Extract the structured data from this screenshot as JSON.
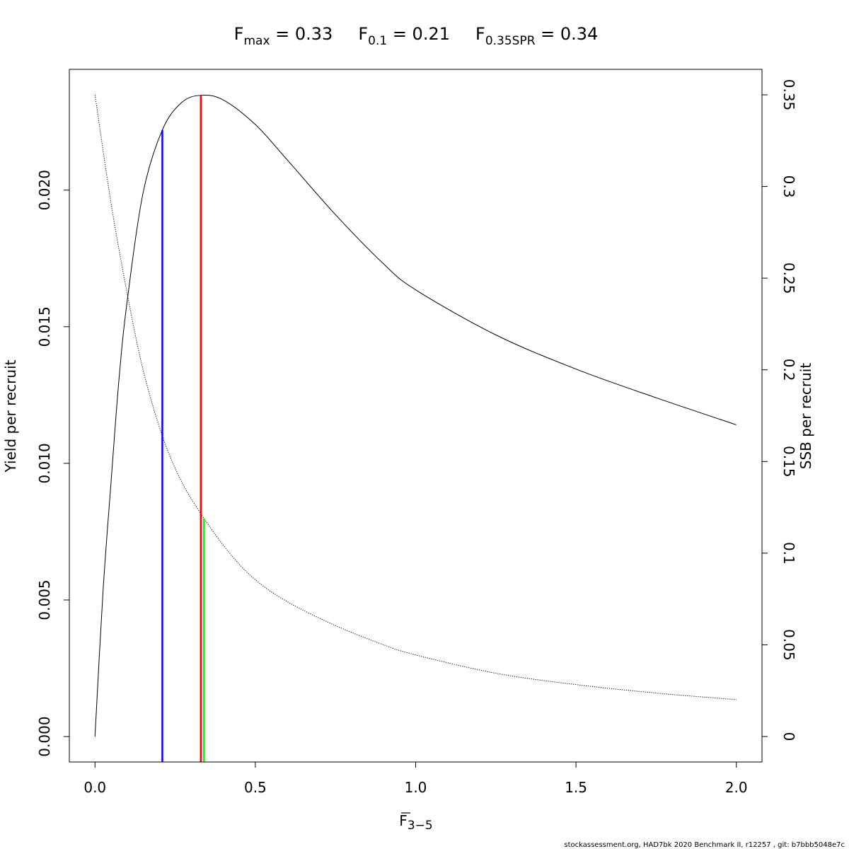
{
  "chart_data": {
    "type": "line",
    "title_parts": [
      {
        "main": "F",
        "sub": "max",
        "rest": " = 0.33"
      },
      {
        "main": "F",
        "sub": "0.1",
        "rest": " = 0.21"
      },
      {
        "main": "F",
        "sub": "0.35SPR",
        "rest": " = 0.34"
      }
    ],
    "xlabel": {
      "main": "F",
      "sub": "3−5",
      "overline": true
    },
    "ylabel_left": "Yield per recruit",
    "ylabel_right": "SSB per recruit",
    "xlim": [
      -0.08,
      2.08
    ],
    "ylim_left": [
      -0.00093,
      0.02442
    ],
    "ylim_right": [
      -0.0139,
      0.3639
    ],
    "x_ticks": [
      {
        "v": 0,
        "label": "0.0"
      },
      {
        "v": 0.5,
        "label": "0.5"
      },
      {
        "v": 1,
        "label": "1.0"
      },
      {
        "v": 1.5,
        "label": "1.5"
      },
      {
        "v": 2,
        "label": "2.0"
      }
    ],
    "y_left_ticks": [
      {
        "v": 0,
        "label": "0.000"
      },
      {
        "v": 0.005,
        "label": "0.005"
      },
      {
        "v": 0.01,
        "label": "0.010"
      },
      {
        "v": 0.015,
        "label": "0.015"
      },
      {
        "v": 0.02,
        "label": "0.020"
      }
    ],
    "y_right_ticks": [
      {
        "v": 0,
        "label": "0"
      },
      {
        "v": 0.05,
        "label": "0.05"
      },
      {
        "v": 0.1,
        "label": "0.1"
      },
      {
        "v": 0.15,
        "label": "0.15"
      },
      {
        "v": 0.2,
        "label": "0.2"
      },
      {
        "v": 0.25,
        "label": "0.25"
      },
      {
        "v": 0.3,
        "label": "0.3"
      },
      {
        "v": 0.35,
        "label": "0.35"
      }
    ],
    "series": [
      {
        "axis": "left",
        "style": "solid",
        "color": "#000000",
        "x": [
          0,
          0.025,
          0.05,
          0.075,
          0.1,
          0.15,
          0.21,
          0.27,
          0.33,
          0.4,
          0.5,
          0.6,
          0.75,
          0.9,
          1.0,
          1.25,
          1.5,
          1.75,
          2.0
        ],
        "y": [
          0,
          0.0053,
          0.0093,
          0.0131,
          0.0159,
          0.0199,
          0.0222,
          0.0232,
          0.02347,
          0.0233,
          0.0224,
          0.0211,
          0.0191,
          0.0173,
          0.01635,
          0.0147,
          0.01345,
          0.0124,
          0.01141
        ]
      },
      {
        "axis": "right",
        "style": "dotted",
        "color": "#000000",
        "x": [
          0,
          0.05,
          0.1,
          0.15,
          0.21,
          0.27,
          0.34,
          0.42,
          0.5,
          0.6,
          0.75,
          0.9,
          1.0,
          1.25,
          1.5,
          1.75,
          2.0
        ],
        "y": [
          0.35,
          0.291,
          0.242,
          0.2,
          0.164,
          0.139,
          0.119,
          0.1,
          0.0855,
          0.0735,
          0.0605,
          0.05,
          0.0445,
          0.0345,
          0.0283,
          0.0237,
          0.0201
        ]
      }
    ],
    "reference_lines": [
      {
        "name": "F0.1",
        "x": 0.21,
        "top": 0.0222,
        "axis": "left",
        "color": "#0000ff"
      },
      {
        "name": "Fmax",
        "x": 0.33,
        "top": 0.02347,
        "axis": "left",
        "color": "#ff0000"
      },
      {
        "name": "F0.35SPR",
        "x": 0.34,
        "top": 0.119,
        "axis": "right",
        "color": "#00ff00"
      }
    ]
  },
  "footer": "stockassessment.org, HAD7bk  2020  Benchmark  II, r12257 , git: b7bbb5048e7c"
}
